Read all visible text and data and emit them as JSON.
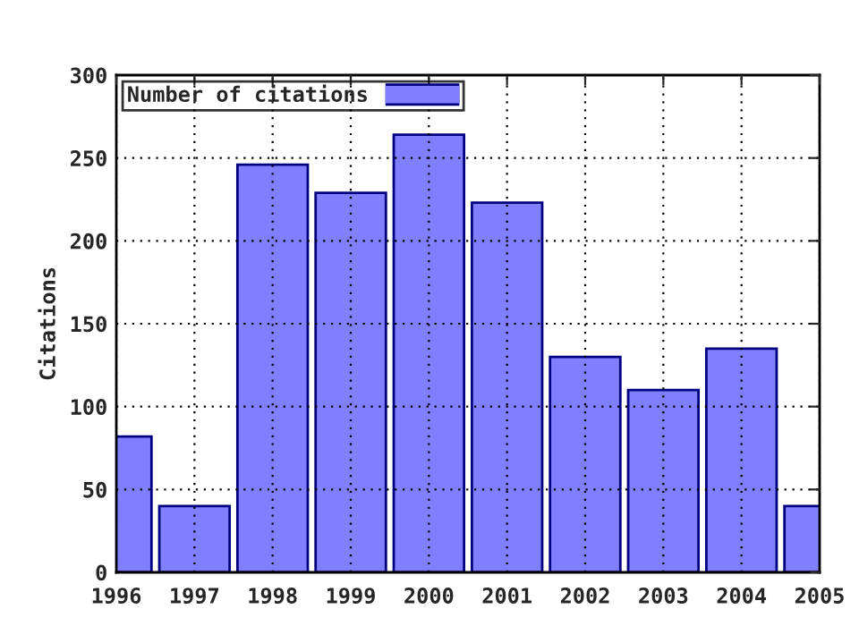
{
  "chart_data": {
    "type": "bar",
    "ylabel": "Citations",
    "x": [
      1996,
      1997,
      1998,
      1999,
      2000,
      2001,
      2002,
      2003,
      2004,
      2005
    ],
    "series": [
      {
        "name": "Number of citations",
        "color": "#8080ff",
        "values": [
          82,
          40,
          246,
          229,
          264,
          223,
          130,
          110,
          135,
          40
        ]
      }
    ],
    "xlim": [
      1996,
      2005
    ],
    "xticks": [
      1996,
      1997,
      1998,
      1999,
      2000,
      2001,
      2002,
      2003,
      2004,
      2005
    ],
    "ylim": [
      0,
      300
    ],
    "yticks": [
      0,
      50,
      100,
      150,
      200,
      250,
      300
    ],
    "grid": true,
    "legend": "top left"
  }
}
